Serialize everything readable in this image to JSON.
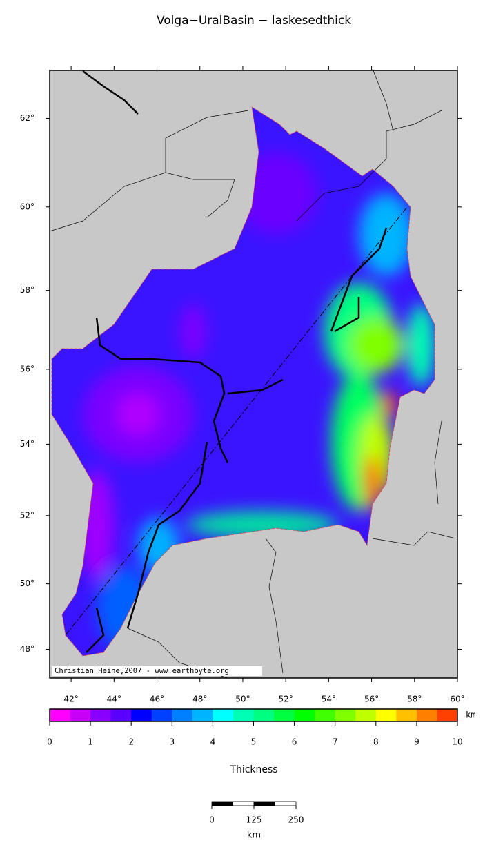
{
  "title": "Volga−UralBasin − laskesedthick",
  "map": {
    "projection": "mercator",
    "xlim": [
      41,
      60
    ],
    "ylim": [
      47.1,
      63.03
    ],
    "xticks": [
      {
        "value": 42,
        "label": "42°"
      },
      {
        "value": 44,
        "label": "44°"
      },
      {
        "value": 46,
        "label": "46°"
      },
      {
        "value": 48,
        "label": "48°"
      },
      {
        "value": 50,
        "label": "50°"
      },
      {
        "value": 52,
        "label": "52°"
      },
      {
        "value": 54,
        "label": "54°"
      },
      {
        "value": 56,
        "label": "56°"
      },
      {
        "value": 58,
        "label": "58°"
      },
      {
        "value": 60,
        "label": "60°"
      }
    ],
    "yticks": [
      {
        "value": 48,
        "label": "48°"
      },
      {
        "value": 50,
        "label": "50°"
      },
      {
        "value": 52,
        "label": "52°"
      },
      {
        "value": 54,
        "label": "54°"
      },
      {
        "value": 56,
        "label": "56°"
      },
      {
        "value": 58,
        "label": "58°"
      },
      {
        "value": 60,
        "label": "60°"
      },
      {
        "value": 62,
        "label": "62°"
      }
    ],
    "credit": "Christian Heine,2007 - www.earthbyte.org"
  },
  "colorbar": {
    "lim": [
      0,
      10
    ],
    "ticks": [
      0,
      1,
      2,
      3,
      4,
      5,
      6,
      7,
      8,
      9,
      10
    ],
    "unit": "km",
    "label": "Thickness",
    "colors": [
      "#ff00ff",
      "#c800f8",
      "#8a00ff",
      "#5a00ff",
      "#0000ff",
      "#0040ff",
      "#0080ff",
      "#00b4ff",
      "#00ffff",
      "#00ffb4",
      "#00ff80",
      "#00ff40",
      "#00ff00",
      "#40ff00",
      "#80ff00",
      "#c0ff00",
      "#ffff00",
      "#ffc000",
      "#ff8000",
      "#ff4000"
    ]
  },
  "scale_bar": {
    "lim": [
      0,
      250
    ],
    "ticks": [
      0,
      125,
      250
    ],
    "unit": "km"
  }
}
